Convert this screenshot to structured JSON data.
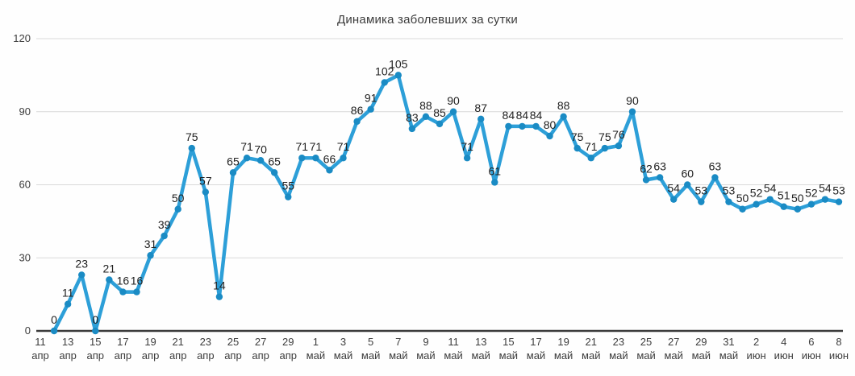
{
  "title": "Динамика заболевших за сутки",
  "chart_data": {
    "type": "line",
    "title": "Динамика заболевших за сутки",
    "line_color": "#2d9fd8",
    "marker_color": "#1a8bc4",
    "label_color": "#212121",
    "axis_label_color": "#3c3c3c",
    "gridline_color": "#d9d9d9",
    "axis_line_color": "#3a3a3a",
    "ylim": [
      0,
      120
    ],
    "y_ticks": [
      0,
      30,
      60,
      90,
      120
    ],
    "grid": "horizontal",
    "legend": "none",
    "x_tick_labels": [
      {
        "day": "11",
        "month": "апр"
      },
      {
        "day": "13",
        "month": "апр"
      },
      {
        "day": "15",
        "month": "апр"
      },
      {
        "day": "17",
        "month": "апр"
      },
      {
        "day": "19",
        "month": "апр"
      },
      {
        "day": "21",
        "month": "апр"
      },
      {
        "day": "23",
        "month": "апр"
      },
      {
        "day": "25",
        "month": "апр"
      },
      {
        "day": "27",
        "month": "апр"
      },
      {
        "day": "29",
        "month": "апр"
      },
      {
        "day": "1",
        "month": "май"
      },
      {
        "day": "3",
        "month": "май"
      },
      {
        "day": "5",
        "month": "май"
      },
      {
        "day": "7",
        "month": "май"
      },
      {
        "day": "9",
        "month": "май"
      },
      {
        "day": "11",
        "month": "май"
      },
      {
        "day": "13",
        "month": "май"
      },
      {
        "day": "15",
        "month": "май"
      },
      {
        "day": "17",
        "month": "май"
      },
      {
        "day": "19",
        "month": "май"
      },
      {
        "day": "21",
        "month": "май"
      },
      {
        "day": "23",
        "month": "май"
      },
      {
        "day": "25",
        "month": "май"
      },
      {
        "day": "27",
        "month": "май"
      },
      {
        "day": "29",
        "month": "май"
      },
      {
        "day": "31",
        "month": "май"
      },
      {
        "day": "2",
        "month": "июн"
      },
      {
        "day": "4",
        "month": "июн"
      },
      {
        "day": "6",
        "month": "июн"
      },
      {
        "day": "8",
        "month": "июн"
      }
    ],
    "values": [
      0,
      11,
      23,
      0,
      21,
      16,
      16,
      31,
      39,
      50,
      75,
      57,
      14,
      65,
      71,
      70,
      65,
      55,
      71,
      71,
      66,
      71,
      86,
      91,
      102,
      105,
      83,
      88,
      85,
      90,
      71,
      87,
      61,
      84,
      84,
      84,
      80,
      88,
      75,
      71,
      75,
      76,
      90,
      62,
      63,
      54,
      60,
      53,
      63,
      53,
      50,
      52,
      54,
      51,
      50,
      52,
      54,
      53
    ],
    "first_point_slot": 1,
    "total_slots": 58
  }
}
